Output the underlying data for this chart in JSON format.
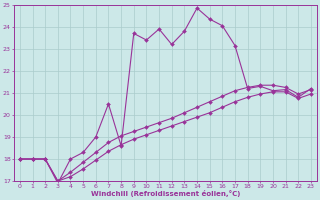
{
  "xlabel": "Windchill (Refroidissement éolien,°C)",
  "background_color": "#cce8e8",
  "grid_color": "#aacccc",
  "line_color": "#993399",
  "xlim": [
    -0.5,
    23.5
  ],
  "ylim": [
    17,
    25
  ],
  "yticks": [
    17,
    18,
    19,
    20,
    21,
    22,
    23,
    24,
    25
  ],
  "xticks": [
    0,
    1,
    2,
    3,
    4,
    5,
    6,
    7,
    8,
    9,
    10,
    11,
    12,
    13,
    14,
    15,
    16,
    17,
    18,
    19,
    20,
    21,
    22,
    23
  ],
  "line1_x": [
    0,
    1,
    2,
    3,
    4,
    5,
    6,
    7,
    8,
    9,
    10,
    11,
    12,
    13,
    14,
    15,
    16,
    17,
    18,
    19,
    20,
    21,
    22,
    23
  ],
  "line1_y": [
    18.0,
    18.0,
    18.0,
    16.9,
    18.0,
    18.3,
    19.0,
    20.5,
    18.6,
    23.7,
    23.4,
    23.9,
    23.2,
    23.8,
    24.85,
    24.35,
    24.05,
    23.15,
    21.2,
    21.3,
    21.1,
    21.15,
    20.8,
    21.2
  ],
  "line2_x": [
    0,
    1,
    2,
    3,
    4,
    5,
    6,
    7,
    8,
    9,
    10,
    11,
    12,
    13,
    14,
    15,
    16,
    17,
    18,
    19,
    20,
    21,
    22,
    23
  ],
  "line2_y": [
    18.0,
    18.0,
    18.0,
    17.0,
    17.4,
    17.85,
    18.3,
    18.75,
    19.05,
    19.25,
    19.45,
    19.65,
    19.85,
    20.1,
    20.35,
    20.6,
    20.85,
    21.1,
    21.25,
    21.35,
    21.35,
    21.25,
    20.95,
    21.15
  ],
  "line3_x": [
    0,
    1,
    2,
    3,
    4,
    5,
    6,
    7,
    8,
    9,
    10,
    11,
    12,
    13,
    14,
    15,
    16,
    17,
    18,
    19,
    20,
    21,
    22,
    23
  ],
  "line3_y": [
    18.0,
    18.0,
    18.0,
    17.0,
    17.2,
    17.55,
    17.95,
    18.35,
    18.65,
    18.9,
    19.1,
    19.3,
    19.5,
    19.7,
    19.9,
    20.1,
    20.35,
    20.6,
    20.8,
    20.95,
    21.05,
    21.05,
    20.75,
    20.95
  ]
}
